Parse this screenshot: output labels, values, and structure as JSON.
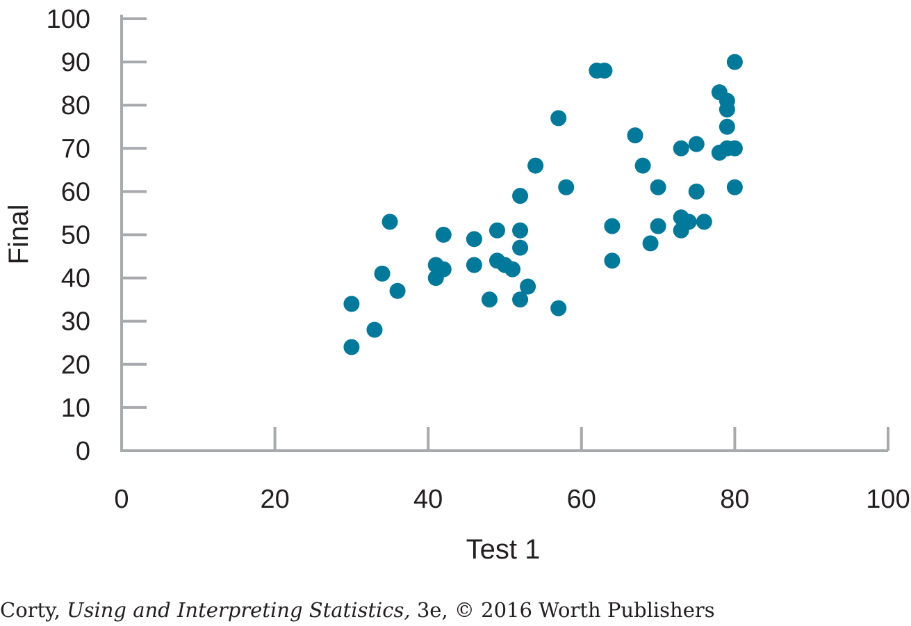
{
  "chart_data": {
    "type": "scatter",
    "xlabel": "Test 1",
    "ylabel": "Final",
    "xlim": [
      0,
      100
    ],
    "ylim": [
      0,
      100
    ],
    "x_ticks": [
      "0",
      "20",
      "40",
      "60",
      "80",
      "100"
    ],
    "y_ticks": [
      "0",
      "10",
      "20",
      "30",
      "40",
      "50",
      "60",
      "70",
      "80",
      "90",
      "100"
    ],
    "grid": false,
    "marker_color": "#00799a",
    "axis_color": "#a7a9ac",
    "points": [
      {
        "x": 30,
        "y": 34
      },
      {
        "x": 30,
        "y": 24
      },
      {
        "x": 33,
        "y": 28
      },
      {
        "x": 34,
        "y": 41
      },
      {
        "x": 35,
        "y": 53
      },
      {
        "x": 36,
        "y": 37
      },
      {
        "x": 41,
        "y": 43
      },
      {
        "x": 41,
        "y": 40
      },
      {
        "x": 42,
        "y": 42
      },
      {
        "x": 42,
        "y": 50
      },
      {
        "x": 46,
        "y": 43
      },
      {
        "x": 46,
        "y": 49
      },
      {
        "x": 48,
        "y": 35
      },
      {
        "x": 49,
        "y": 51
      },
      {
        "x": 49,
        "y": 44
      },
      {
        "x": 50,
        "y": 43
      },
      {
        "x": 51,
        "y": 42
      },
      {
        "x": 52,
        "y": 59
      },
      {
        "x": 52,
        "y": 51
      },
      {
        "x": 52,
        "y": 47
      },
      {
        "x": 52,
        "y": 35
      },
      {
        "x": 53,
        "y": 38
      },
      {
        "x": 54,
        "y": 66
      },
      {
        "x": 57,
        "y": 77
      },
      {
        "x": 57,
        "y": 33
      },
      {
        "x": 58,
        "y": 61
      },
      {
        "x": 62,
        "y": 88
      },
      {
        "x": 63,
        "y": 88
      },
      {
        "x": 64,
        "y": 52
      },
      {
        "x": 64,
        "y": 44
      },
      {
        "x": 67,
        "y": 73
      },
      {
        "x": 68,
        "y": 66
      },
      {
        "x": 69,
        "y": 48
      },
      {
        "x": 70,
        "y": 61
      },
      {
        "x": 70,
        "y": 52
      },
      {
        "x": 73,
        "y": 70
      },
      {
        "x": 73,
        "y": 54
      },
      {
        "x": 73,
        "y": 51
      },
      {
        "x": 74,
        "y": 53
      },
      {
        "x": 75,
        "y": 71
      },
      {
        "x": 75,
        "y": 60
      },
      {
        "x": 76,
        "y": 53
      },
      {
        "x": 78,
        "y": 83
      },
      {
        "x": 78,
        "y": 69
      },
      {
        "x": 79,
        "y": 81
      },
      {
        "x": 79,
        "y": 79
      },
      {
        "x": 79,
        "y": 75
      },
      {
        "x": 79,
        "y": 70
      },
      {
        "x": 80,
        "y": 90
      },
      {
        "x": 80,
        "y": 70
      },
      {
        "x": 80,
        "y": 61
      }
    ]
  },
  "credit": {
    "author": "Corty, ",
    "book_title": "Using and Interpreting Statistics,",
    "edition_publisher": " 3e, © 2016 Worth Publishers"
  }
}
